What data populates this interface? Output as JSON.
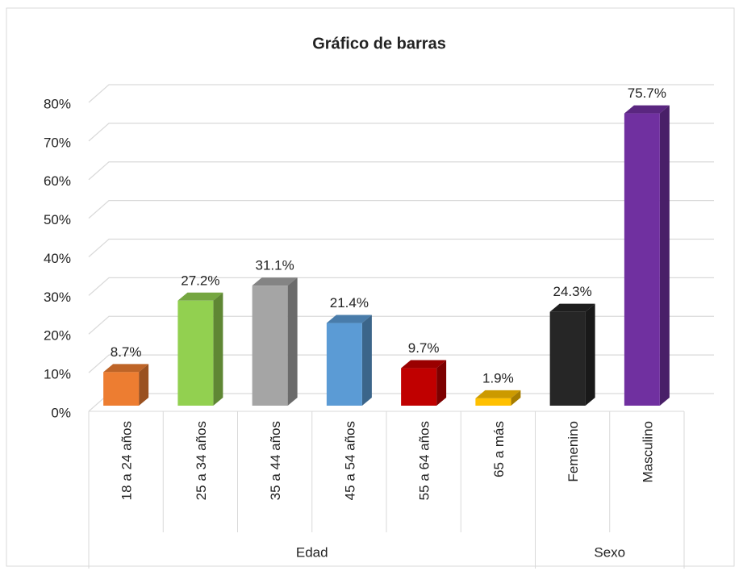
{
  "chart_data": {
    "type": "bar3d",
    "title": "Gráfico de barras",
    "groups": [
      {
        "name": "Edad",
        "categories": [
          "18 a 24 años",
          "25 a 34 años",
          "35 a 44 años",
          "45 a 54 años",
          "55 a 64 años",
          "65 a más"
        ],
        "values": [
          8.7,
          27.2,
          31.1,
          21.4,
          9.7,
          1.9
        ],
        "value_labels": [
          "8.7%",
          "27.2%",
          "31.1%",
          "21.4%",
          "9.7%",
          "1.9%"
        ],
        "colors": [
          "#ed7d31",
          "#92d050",
          "#a5a5a5",
          "#5b9bd5",
          "#c00000",
          "#ffc000"
        ]
      },
      {
        "name": "Sexo",
        "categories": [
          "Femenino",
          "Masculino"
        ],
        "values": [
          24.3,
          75.7
        ],
        "value_labels": [
          "24.3%",
          "75.7%"
        ],
        "colors": [
          "#262626",
          "#7030a0"
        ]
      }
    ],
    "ylim": [
      0,
      80
    ],
    "yticks": [
      {
        "value": 0,
        "label": "0%"
      },
      {
        "value": 10,
        "label": "10%"
      },
      {
        "value": 20,
        "label": "20%"
      },
      {
        "value": 30,
        "label": "30%"
      },
      {
        "value": 40,
        "label": "40%"
      },
      {
        "value": 50,
        "label": "50%"
      },
      {
        "value": 60,
        "label": "60%"
      },
      {
        "value": 70,
        "label": "70%"
      },
      {
        "value": 80,
        "label": "80%"
      }
    ],
    "grid": true
  }
}
